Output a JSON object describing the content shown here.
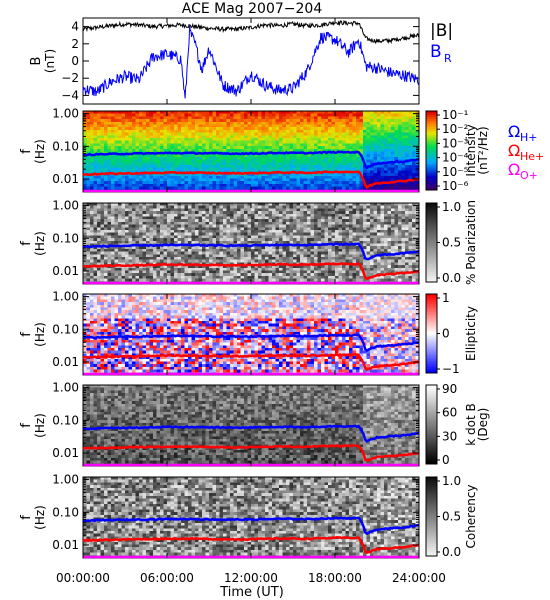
{
  "figure": {
    "title": "ACE Mag 2007−204",
    "xlabel": "Time (UT)",
    "xticks": [
      "00:00:00",
      "06:00:00",
      "12:00:00",
      "18:00:00",
      "24:00:00"
    ]
  },
  "chart_data": [
    {
      "type": "line",
      "panel": "magnetic-field",
      "ylabel": "B",
      "yunit": "(nT)",
      "ylim": [
        -5,
        5
      ],
      "yticks": [
        "4",
        "2",
        "0",
        "−2",
        "−4"
      ],
      "x_range_hours": [
        0,
        24
      ],
      "series": [
        {
          "name": "|B|",
          "color": "#000000",
          "x": [
            0,
            1,
            2,
            3,
            4,
            5,
            6,
            7,
            8,
            9,
            10,
            11,
            12,
            13,
            14,
            15,
            16,
            17,
            18,
            19,
            19.7,
            20.2,
            21,
            22,
            23,
            24
          ],
          "values": [
            3.7,
            3.9,
            4.1,
            4.3,
            4.2,
            4.0,
            4.1,
            4.2,
            4.0,
            3.8,
            3.7,
            3.7,
            3.9,
            4.2,
            4.1,
            4.3,
            4.1,
            4.2,
            4.5,
            4.4,
            4.4,
            2.6,
            2.3,
            2.4,
            2.7,
            3.0
          ]
        },
        {
          "name": "B",
          "subscript": "R",
          "color": "#0000ff",
          "x": [
            0,
            1,
            2,
            3,
            4,
            5,
            6,
            7,
            7.3,
            7.6,
            8,
            8.5,
            9,
            10,
            11,
            12,
            13,
            14,
            15,
            16,
            17,
            18,
            19,
            19.7,
            20.2,
            21,
            22,
            23,
            24
          ],
          "values": [
            -3.2,
            -3.6,
            -2.4,
            -1.8,
            -2.2,
            0.5,
            0.8,
            0.2,
            -4.6,
            3.5,
            2.0,
            -1.0,
            1.5,
            -2.8,
            -3.5,
            -1.5,
            -2.8,
            -3.4,
            -3.2,
            -1.2,
            2.8,
            2.5,
            1.0,
            2.5,
            -0.6,
            -0.8,
            -1.4,
            -1.7,
            -2.2
          ]
        }
      ]
    },
    {
      "type": "heatmap",
      "panel": "intensity",
      "ylabel": "f",
      "yunit": "(Hz)",
      "yscale": "log",
      "ylim": [
        0.004,
        1.2
      ],
      "yticks": [
        "1.00",
        "0.10",
        "0.01"
      ],
      "colorbar": {
        "title": "Intensity",
        "unit": "(nT²/Hz)",
        "ticks": [
          "10⁻¹",
          "10⁻²",
          "10⁻³",
          "10⁻⁴",
          "10⁻⁵",
          "10⁻⁶"
        ],
        "colorscale": "rainbow"
      }
    },
    {
      "type": "heatmap",
      "panel": "polarization",
      "ylabel": "f",
      "yunit": "(Hz)",
      "yscale": "log",
      "ylim": [
        0.004,
        1.2
      ],
      "yticks": [
        "1.00",
        "0.10",
        "0.01"
      ],
      "colorbar": {
        "title": "% Polarization",
        "ticks": [
          "1.0",
          "0.5",
          "0.0"
        ],
        "colorscale": "gray"
      }
    },
    {
      "type": "heatmap",
      "panel": "ellipticity",
      "ylabel": "f",
      "yunit": "(Hz)",
      "yscale": "log",
      "ylim": [
        0.004,
        1.2
      ],
      "yticks": [
        "1.00",
        "0.10",
        "0.01"
      ],
      "colorbar": {
        "title": "Ellipticity",
        "ticks": [
          "1",
          "0",
          "−1"
        ],
        "colorscale": "red-white-blue"
      }
    },
    {
      "type": "heatmap",
      "panel": "k-dot-b",
      "ylabel": "f",
      "yunit": "(Hz)",
      "yscale": "log",
      "ylim": [
        0.004,
        1.2
      ],
      "yticks": [
        "1.00",
        "0.10",
        "0.01"
      ],
      "colorbar": {
        "title": "k dot B",
        "unit": "(Deg)",
        "ticks": [
          "90",
          "60",
          "30",
          "0"
        ],
        "colorscale": "gray"
      }
    },
    {
      "type": "heatmap",
      "panel": "coherency",
      "ylabel": "f",
      "yunit": "(Hz)",
      "yscale": "log",
      "ylim": [
        0.004,
        1.2
      ],
      "yticks": [
        "1.00",
        "0.10",
        "0.01"
      ],
      "colorbar": {
        "title": "Coherency",
        "ticks": [
          "1.0",
          "0.5",
          "0.0"
        ],
        "colorscale": "gray"
      }
    }
  ],
  "gyrofrequencies": {
    "legend": [
      {
        "symbol": "Ω",
        "subscript": "H+",
        "color": "#0000ff"
      },
      {
        "symbol": "Ω",
        "subscript": "He+",
        "color": "#ff0000"
      },
      {
        "symbol": "Ω",
        "subscript": "O+",
        "color": "#ff00ff"
      }
    ],
    "x": [
      0,
      2,
      4,
      6,
      8,
      10,
      12,
      14,
      16,
      18,
      19.7,
      20.2,
      21,
      22,
      23,
      24
    ],
    "H+": [
      0.055,
      0.058,
      0.06,
      0.062,
      0.062,
      0.06,
      0.06,
      0.063,
      0.062,
      0.066,
      0.066,
      0.022,
      0.03,
      0.032,
      0.035,
      0.04
    ],
    "He+": [
      0.0138,
      0.0145,
      0.015,
      0.0155,
      0.0155,
      0.015,
      0.015,
      0.0158,
      0.0155,
      0.0165,
      0.0165,
      0.0055,
      0.0075,
      0.008,
      0.0088,
      0.01
    ],
    "O+": [
      0.0034,
      0.0036,
      0.0037,
      0.0039,
      0.0039,
      0.0037,
      0.0037,
      0.0039,
      0.0039,
      0.0041,
      0.0041,
      0.0014,
      0.0019,
      0.002,
      0.0022,
      0.0025
    ]
  }
}
